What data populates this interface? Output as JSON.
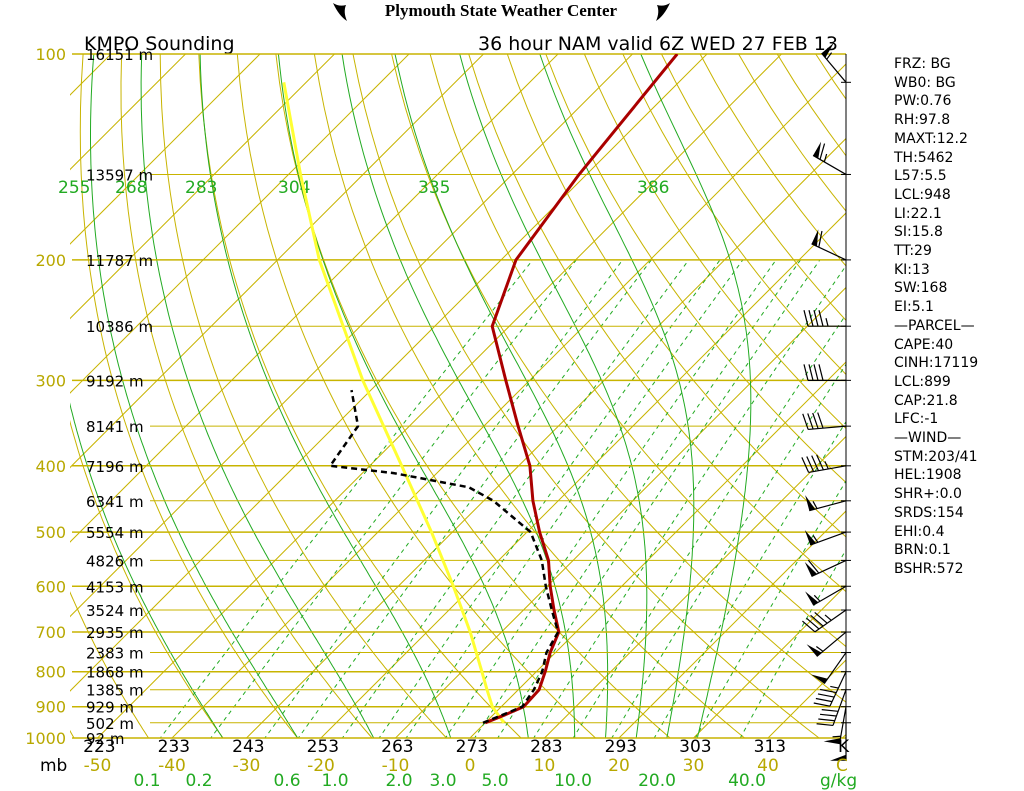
{
  "header": {
    "title": "Plymouth State Weather Center",
    "station_label": "KMPO Sounding",
    "valid_label": "36 hour NAM valid 6Z WED 27 FEB 13"
  },
  "colors": {
    "isobar": "#c8b400",
    "isotherm": "#c8b400",
    "dry_adiabat": "#c8b400",
    "moist_adiabat": "#22aa22",
    "mixing_ratio": "#22aa22",
    "temperature": "#aa0000",
    "dewpoint": "#000000",
    "parcel": "#ffff33",
    "wind": "#000000"
  },
  "chart_data": {
    "type": "line",
    "chart_kind": "skew-t log-p sounding diagram",
    "pressure_axis": {
      "unit_label": "mb",
      "scale": "log",
      "range": [
        1000,
        100
      ],
      "labeled_ticks": [
        "100",
        "200",
        "300",
        "400",
        "500",
        "600",
        "700",
        "800",
        "900",
        "1000"
      ]
    },
    "temperature_axis": {
      "unit_label": "C",
      "ticks": [
        "-50",
        "-40",
        "-30",
        "-20",
        "-10",
        "0",
        "10",
        "20",
        "30",
        "40"
      ],
      "range": [
        -50,
        50
      ]
    },
    "kelvin_scale": {
      "unit_label": "K",
      "ticks": [
        "223",
        "233",
        "243",
        "253",
        "263",
        "273",
        "283",
        "293",
        "303",
        "313"
      ]
    },
    "theta_e_labels": [
      "255",
      "268",
      "283",
      "304",
      "335",
      "386"
    ],
    "mixing_ratio_axis": {
      "unit_label": "g/kg",
      "ticks": [
        "0.1",
        "0.2",
        "0.6",
        "1.0",
        "2.0",
        "3.0",
        "5.0",
        "10.0",
        "20.0",
        "40.0"
      ]
    },
    "height_labels": [
      {
        "p": 100,
        "text": "16151 m"
      },
      {
        "p": 150,
        "text": "13597 m"
      },
      {
        "p": 200,
        "text": "11787 m"
      },
      {
        "p": 250,
        "text": "10386 m"
      },
      {
        "p": 300,
        "text": "9192 m"
      },
      {
        "p": 350,
        "text": "8141 m"
      },
      {
        "p": 400,
        "text": "7196 m"
      },
      {
        "p": 450,
        "text": "6341 m"
      },
      {
        "p": 500,
        "text": "5554 m"
      },
      {
        "p": 550,
        "text": "4826 m"
      },
      {
        "p": 600,
        "text": "4153 m"
      },
      {
        "p": 650,
        "text": "3524 m"
      },
      {
        "p": 700,
        "text": "2935 m"
      },
      {
        "p": 750,
        "text": "2383 m"
      },
      {
        "p": 800,
        "text": "1868 m"
      },
      {
        "p": 850,
        "text": "1385 m"
      },
      {
        "p": 900,
        "text": "929 m"
      },
      {
        "p": 950,
        "text": "502 m"
      },
      {
        "p": 1000,
        "text": "92 m"
      }
    ],
    "series": [
      {
        "name": "temperature",
        "points": [
          {
            "p": 950,
            "t": 0.0
          },
          {
            "p": 925,
            "t": 1.6
          },
          {
            "p": 900,
            "t": 3.0
          },
          {
            "p": 850,
            "t": 2.8
          },
          {
            "p": 800,
            "t": 1.2
          },
          {
            "p": 750,
            "t": -0.7
          },
          {
            "p": 700,
            "t": -2.3
          },
          {
            "p": 650,
            "t": -5.9
          },
          {
            "p": 600,
            "t": -9.6
          },
          {
            "p": 550,
            "t": -13.3
          },
          {
            "p": 500,
            "t": -18.3
          },
          {
            "p": 450,
            "t": -23.4
          },
          {
            "p": 400,
            "t": -28.5
          },
          {
            "p": 350,
            "t": -35.4
          },
          {
            "p": 300,
            "t": -43.2
          },
          {
            "p": 250,
            "t": -52.3
          },
          {
            "p": 200,
            "t": -58.0
          },
          {
            "p": 150,
            "t": -61.0
          },
          {
            "p": 100,
            "t": -64.0
          }
        ]
      },
      {
        "name": "dewpoint",
        "points": [
          {
            "p": 950,
            "t": -0.3
          },
          {
            "p": 925,
            "t": 1.3
          },
          {
            "p": 900,
            "t": 2.8
          },
          {
            "p": 850,
            "t": 2.1
          },
          {
            "p": 800,
            "t": 0.8
          },
          {
            "p": 750,
            "t": -1.2
          },
          {
            "p": 700,
            "t": -2.4
          },
          {
            "p": 650,
            "t": -6.2
          },
          {
            "p": 600,
            "t": -10.2
          },
          {
            "p": 550,
            "t": -14.2
          },
          {
            "p": 500,
            "t": -19.5
          },
          {
            "p": 450,
            "t": -28.7
          },
          {
            "p": 430,
            "t": -33.8
          },
          {
            "p": 410,
            "t": -45.8
          },
          {
            "p": 400,
            "t": -55.3
          },
          {
            "p": 350,
            "t": -56.9
          },
          {
            "p": 310,
            "t": -62.6
          }
        ]
      },
      {
        "name": "parcel",
        "points": [
          {
            "p": 950,
            "t": 2.5
          },
          {
            "p": 900,
            "t": -1.2
          },
          {
            "p": 850,
            "t": -4.2
          },
          {
            "p": 800,
            "t": -7.3
          },
          {
            "p": 700,
            "t": -14.2
          },
          {
            "p": 600,
            "t": -22.6
          },
          {
            "p": 500,
            "t": -32.8
          },
          {
            "p": 400,
            "t": -45.7
          },
          {
            "p": 300,
            "t": -62.4
          },
          {
            "p": 250,
            "t": -72.3
          },
          {
            "p": 200,
            "t": -84.4
          },
          {
            "p": 150,
            "t": -98.4
          },
          {
            "p": 110,
            "t": -113.0
          }
        ]
      }
    ],
    "wind_barbs": [
      {
        "p": 110,
        "dir": 320,
        "kt": 55
      },
      {
        "p": 150,
        "dir": 300,
        "kt": 65
      },
      {
        "p": 200,
        "dir": 295,
        "kt": 60
      },
      {
        "p": 250,
        "dir": 270,
        "kt": 45
      },
      {
        "p": 300,
        "dir": 270,
        "kt": 40
      },
      {
        "p": 350,
        "dir": 265,
        "kt": 40
      },
      {
        "p": 400,
        "dir": 260,
        "kt": 45
      },
      {
        "p": 450,
        "dir": 255,
        "kt": 55
      },
      {
        "p": 500,
        "dir": 250,
        "kt": 55
      },
      {
        "p": 550,
        "dir": 245,
        "kt": 60
      },
      {
        "p": 600,
        "dir": 240,
        "kt": 55
      },
      {
        "p": 650,
        "dir": 235,
        "kt": 45
      },
      {
        "p": 700,
        "dir": 230,
        "kt": 55
      },
      {
        "p": 750,
        "dir": 215,
        "kt": 50
      },
      {
        "p": 800,
        "dir": 205,
        "kt": 45
      },
      {
        "p": 850,
        "dir": 200,
        "kt": 40
      },
      {
        "p": 900,
        "dir": 190,
        "kt": 55
      },
      {
        "p": 950,
        "dir": 180,
        "kt": 50
      }
    ]
  },
  "indices": [
    "FRZ: BG",
    "WB0: BG",
    "PW:0.76",
    "RH:97.8",
    "MAXT:12.2",
    "TH:5462",
    "L57:5.5",
    "LCL:948",
    "LI:22.1",
    "SI:15.8",
    "TT:29",
    "KI:13",
    "SW:168",
    "EI:5.1",
    "—PARCEL—",
    "CAPE:40",
    "CINH:17119",
    "LCL:899",
    "CAP:21.8",
    "LFC:-1",
    "—WIND—",
    "STM:203/41",
    "HEL:1908",
    "SHR+:0.0",
    "SRDS:154",
    "EHI:0.4",
    "BRN:0.1",
    "BSHR:572"
  ]
}
